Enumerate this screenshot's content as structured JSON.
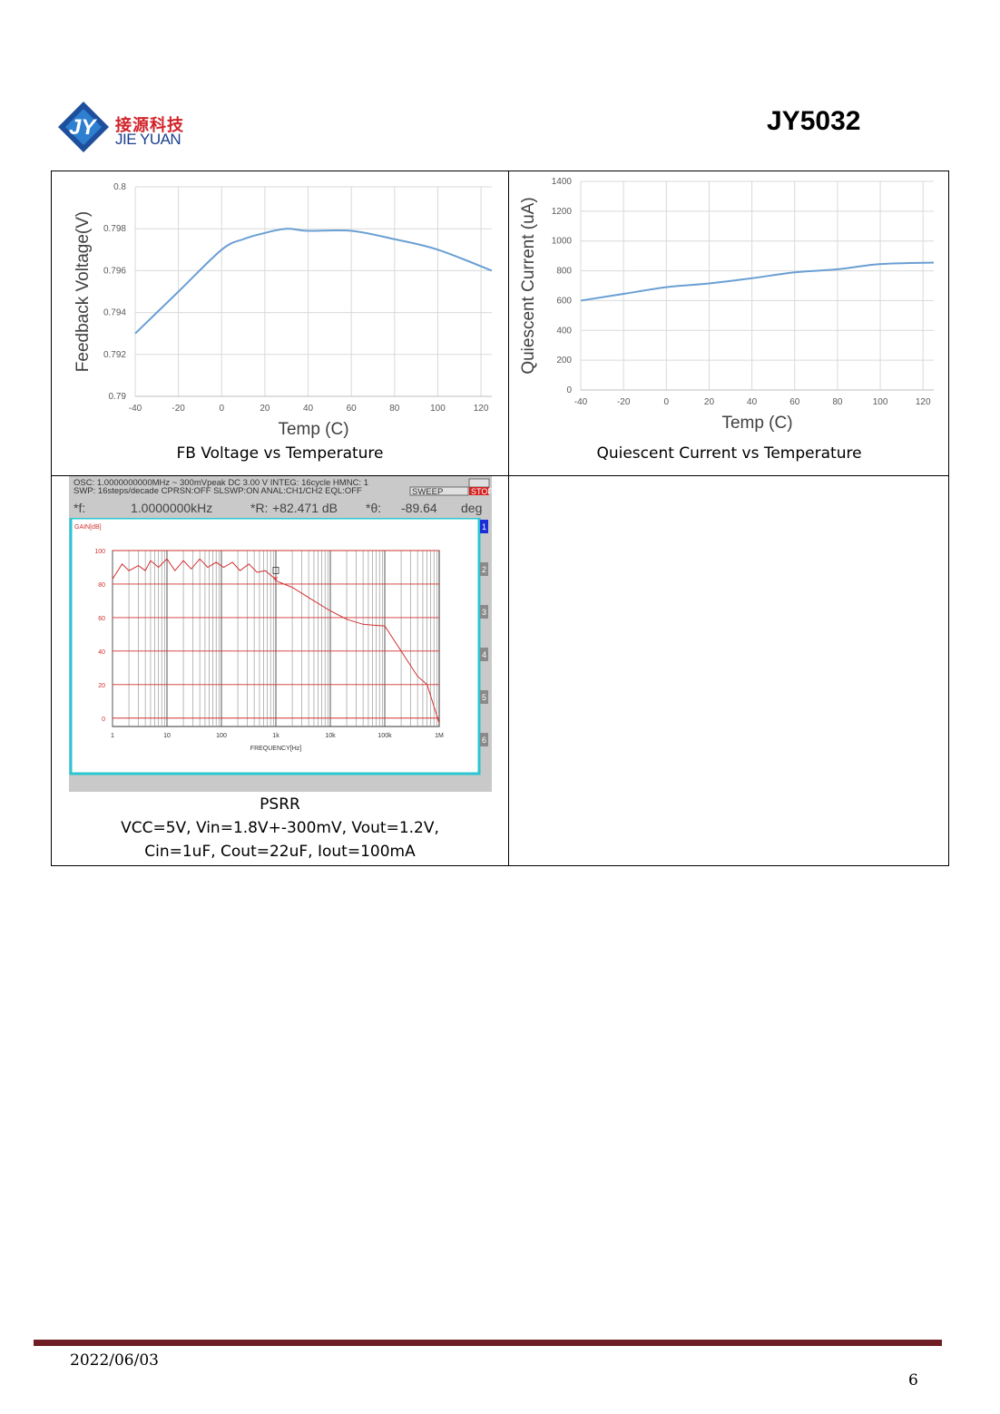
{
  "header": {
    "logo_cn": "接源科技",
    "logo_en": "JIE YUAN",
    "part_number": "JY5032"
  },
  "chart_data": [
    {
      "type": "line",
      "ylabel": "Feedback Voltage(V)",
      "xlabel": "Temp (C)",
      "xlim": [
        -40,
        125
      ],
      "ylim": [
        0.79,
        0.8
      ],
      "xticks": [
        "-40",
        "-20",
        "0",
        "20",
        "40",
        "60",
        "80",
        "100",
        "120"
      ],
      "yticks": [
        "0.79",
        "0.792",
        "0.794",
        "0.796",
        "0.798",
        "0.8"
      ],
      "grid": true,
      "x": [
        -40,
        -20,
        0,
        10,
        20,
        30,
        40,
        60,
        80,
        100,
        125
      ],
      "y": [
        0.793,
        0.795,
        0.797,
        0.7975,
        0.7978,
        0.798,
        0.7979,
        0.7979,
        0.7975,
        0.797,
        0.796
      ],
      "color": "#6a9fd4"
    },
    {
      "type": "line",
      "ylabel": "Quiescent Current (uA)",
      "xlabel": "Temp (C)",
      "xlim": [
        -40,
        125
      ],
      "ylim": [
        0,
        1400
      ],
      "xticks": [
        "-40",
        "-20",
        "0",
        "20",
        "40",
        "60",
        "80",
        "100",
        "120"
      ],
      "yticks": [
        "0",
        "200",
        "400",
        "600",
        "800",
        "1000",
        "1200",
        "1400"
      ],
      "grid": true,
      "x": [
        -40,
        -20,
        0,
        20,
        40,
        60,
        80,
        100,
        125
      ],
      "y": [
        600,
        645,
        690,
        715,
        750,
        790,
        810,
        845,
        855
      ],
      "color": "#6a9fd4"
    },
    {
      "type": "line",
      "ylabel": "GAIN[dB]",
      "xlabel": "FREQUENCY[Hz]",
      "log_x": true,
      "xlim": [
        1,
        1000000
      ],
      "ylim": [
        -5,
        100
      ],
      "xticks": [
        "1",
        "10",
        "100",
        "1k",
        "10k",
        "100k",
        "1M"
      ],
      "yticks": [
        "100",
        "80",
        "60",
        "40",
        "20",
        "0"
      ],
      "grid": true,
      "x": [
        1,
        1.5,
        2,
        3,
        4,
        5,
        7,
        10,
        14,
        20,
        28,
        40,
        56,
        80,
        110,
        160,
        220,
        320,
        450,
        640,
        900,
        1000,
        2000,
        5000,
        10000,
        20000,
        40000,
        60000,
        100000,
        200000,
        400000,
        600000,
        1000000
      ],
      "y": [
        83,
        92,
        88,
        91,
        88,
        94,
        90,
        95,
        88,
        94,
        89,
        95,
        90,
        93,
        90,
        93,
        88,
        92,
        87,
        88,
        84,
        82,
        78,
        70,
        64,
        59,
        56,
        55.5,
        55,
        40,
        25,
        20,
        -3
      ],
      "color": "#d33030"
    }
  ],
  "analyzer": {
    "line1": "OSC: 1.0000000000MHz  ~  300mVpeak DC  3.00 V  INTEG:   16cycle   HMNC:  1",
    "line2": "SWP:    16steps/decade CPRSN:OFF SLSWP:ON  ANAL:CH1/CH2 EQL:OFF",
    "sweep_label": "SWEEP",
    "stop_label": "STOP",
    "f_label": "*f:",
    "f_value": "1.0000000kHz",
    "r_label": "*R:",
    "r_value": "+82.471 dB",
    "theta_label": "*θ:",
    "theta_value": "-89.64",
    "theta_unit": "deg",
    "tabs": [
      "1",
      "2",
      "3",
      "4",
      "5",
      "6"
    ]
  },
  "captions": {
    "fb": "FB Voltage vs Temperature",
    "iq": "Quiescent Current vs Temperature",
    "psrr_title": "PSRR",
    "psrr_line1": "VCC=5V, Vin=1.8V+-300mV, Vout=1.2V,",
    "psrr_line2": "Cin=1uF, Cout=22uF, Iout=100mA"
  },
  "footer": {
    "date": "2022/06/03",
    "page": "6"
  }
}
